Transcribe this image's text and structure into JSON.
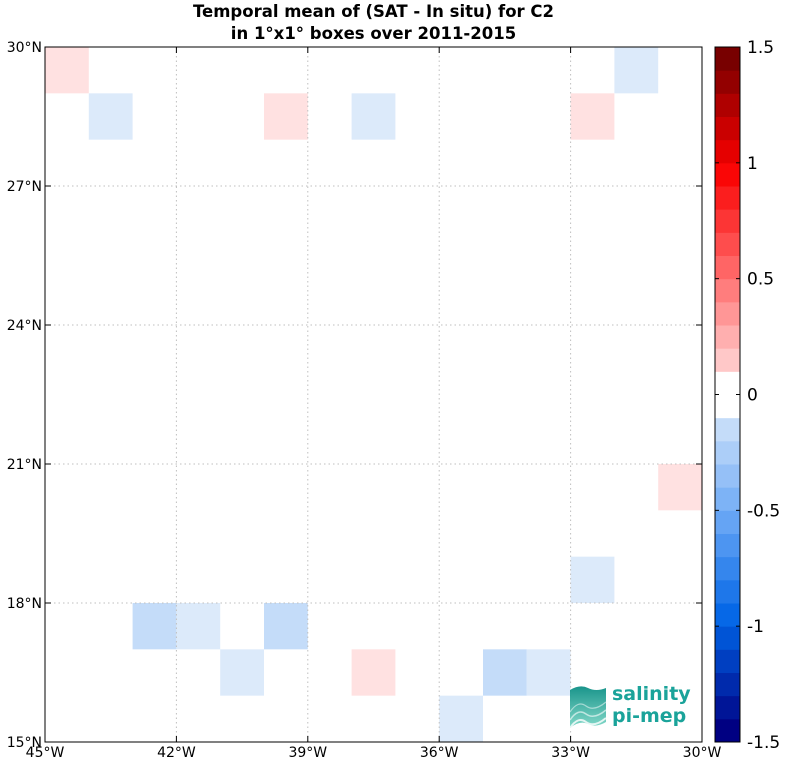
{
  "chart_data": {
    "type": "heatmap",
    "title": [
      "Temporal mean of (SAT - In situ) for C2",
      "in 1°x1° boxes over 2011-2015"
    ],
    "x_ticks": [
      "45°W",
      "42°W",
      "39°W",
      "36°W",
      "33°W",
      "30°W"
    ],
    "y_ticks": [
      "30°N",
      "27°N",
      "24°N",
      "21°N",
      "18°N",
      "15°N"
    ],
    "lon_range": [
      -45,
      -30
    ],
    "lat_range": [
      15,
      30
    ],
    "grid": "dotted",
    "colorbar": {
      "range": [
        -1.5,
        1.5
      ],
      "ticks": [
        "1.5",
        "1",
        "0.5",
        "0",
        "-0.5",
        "-1",
        "-1.5"
      ],
      "step": 0.1
    },
    "cells": [
      {
        "lon": -45,
        "lat": 29,
        "value": 0.1
      },
      {
        "lon": -44,
        "lat": 28,
        "value": -0.1
      },
      {
        "lon": -40,
        "lat": 28,
        "value": 0.1
      },
      {
        "lon": -38,
        "lat": 28,
        "value": -0.1
      },
      {
        "lon": -33,
        "lat": 28,
        "value": 0.1
      },
      {
        "lon": -32,
        "lat": 29,
        "value": -0.1
      },
      {
        "lon": -31,
        "lat": 20,
        "value": 0.1
      },
      {
        "lon": -33,
        "lat": 18,
        "value": -0.1
      },
      {
        "lon": -43,
        "lat": 17,
        "value": -0.2
      },
      {
        "lon": -42,
        "lat": 17,
        "value": -0.1
      },
      {
        "lon": -40,
        "lat": 17,
        "value": -0.2
      },
      {
        "lon": -41,
        "lat": 16,
        "value": -0.1
      },
      {
        "lon": -38,
        "lat": 16,
        "value": 0.1
      },
      {
        "lon": -35,
        "lat": 16,
        "value": -0.2
      },
      {
        "lon": -34,
        "lat": 16,
        "value": -0.1
      },
      {
        "lon": -36,
        "lat": 15,
        "value": -0.1
      }
    ]
  },
  "logo": {
    "line1": "salinity",
    "line2": "pi-mep"
  }
}
